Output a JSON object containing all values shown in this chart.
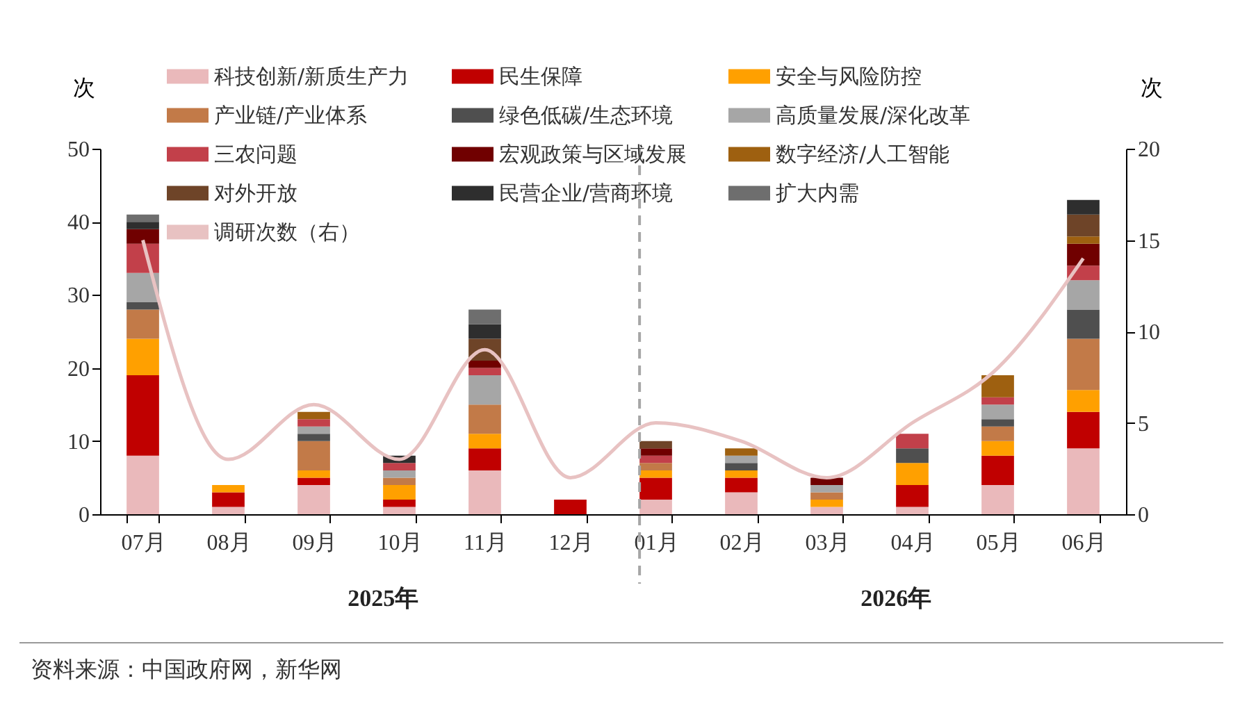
{
  "chart_data": {
    "type": "bar",
    "stacked": true,
    "ylabel": "次",
    "y2label": "次",
    "categories": [
      "07月",
      "08月",
      "09月",
      "10月",
      "11月",
      "12月",
      "01月",
      "02月",
      "03月",
      "04月",
      "05月",
      "06月"
    ],
    "ylim": [
      0,
      50
    ],
    "yticks": [
      0,
      10,
      20,
      30,
      40,
      50
    ],
    "y2lim": [
      0,
      20
    ],
    "y2ticks": [
      0,
      5,
      10,
      15,
      20
    ],
    "grid": false,
    "legend": "top",
    "series": [
      {
        "name": "科技创新/新质生产力",
        "color": "#eab9bb",
        "values": [
          8,
          1,
          4,
          1,
          6,
          0,
          2,
          3,
          1,
          1,
          4,
          9
        ]
      },
      {
        "name": "民生保障",
        "color": "#c00000",
        "values": [
          11,
          2,
          1,
          1,
          3,
          2,
          3,
          2,
          0,
          3,
          4,
          5
        ]
      },
      {
        "name": "安全与风险防控",
        "color": "#ffa000",
        "values": [
          5,
          1,
          1,
          2,
          2,
          0,
          1,
          1,
          1,
          3,
          2,
          3
        ]
      },
      {
        "name": "产业链/产业体系",
        "color": "#c27a48",
        "values": [
          4,
          0,
          4,
          1,
          4,
          0,
          1,
          0,
          1,
          0,
          2,
          7
        ]
      },
      {
        "name": "绿色低碳/生态环境",
        "color": "#4f4f4f",
        "values": [
          1,
          0,
          1,
          0,
          0,
          0,
          0,
          1,
          0,
          2,
          1,
          4
        ]
      },
      {
        "name": "高质量发展/深化改革",
        "color": "#a6a6a6",
        "values": [
          4,
          0,
          1,
          1,
          4,
          0,
          0,
          1,
          1,
          0,
          2,
          4
        ]
      },
      {
        "name": "三农问题",
        "color": "#c2404a",
        "values": [
          4,
          0,
          1,
          1,
          1,
          0,
          1,
          0,
          0,
          2,
          1,
          2
        ]
      },
      {
        "name": "宏观政策与区域发展",
        "color": "#700000",
        "values": [
          2,
          0,
          0,
          0,
          1,
          0,
          1,
          0,
          1,
          0,
          0,
          3
        ]
      },
      {
        "name": "数字经济/人工智能",
        "color": "#9e6010",
        "values": [
          0,
          0,
          1,
          0,
          0,
          0,
          0,
          1,
          0,
          0,
          3,
          1
        ]
      },
      {
        "name": "对外开放",
        "color": "#6e4428",
        "values": [
          0,
          0,
          0,
          0,
          3,
          0,
          1,
          0,
          0,
          0,
          0,
          3
        ]
      },
      {
        "name": "民营企业/营商环境",
        "color": "#2e2e2e",
        "values": [
          1,
          0,
          0,
          1,
          2,
          0,
          0,
          0,
          0,
          0,
          0,
          2
        ]
      },
      {
        "name": "扩大内需",
        "color": "#6e6e6e",
        "values": [
          1,
          0,
          0,
          0,
          2,
          0,
          0,
          0,
          0,
          0,
          0,
          0
        ]
      },
      {
        "name": "调研次数（右）",
        "color": "#e8c2c2",
        "type": "line",
        "axis": "y2",
        "values": [
          15,
          3,
          6,
          3,
          9,
          2,
          5,
          4,
          2,
          5,
          8,
          14
        ]
      }
    ],
    "ref_lines": [
      {
        "axis": "x",
        "value": "01月",
        "label": null,
        "color": "#a6a6a6",
        "line_style": "dashed"
      }
    ],
    "annotations": [
      "2025年",
      "2026年",
      "资料来源：中国政府网，新华网"
    ]
  }
}
